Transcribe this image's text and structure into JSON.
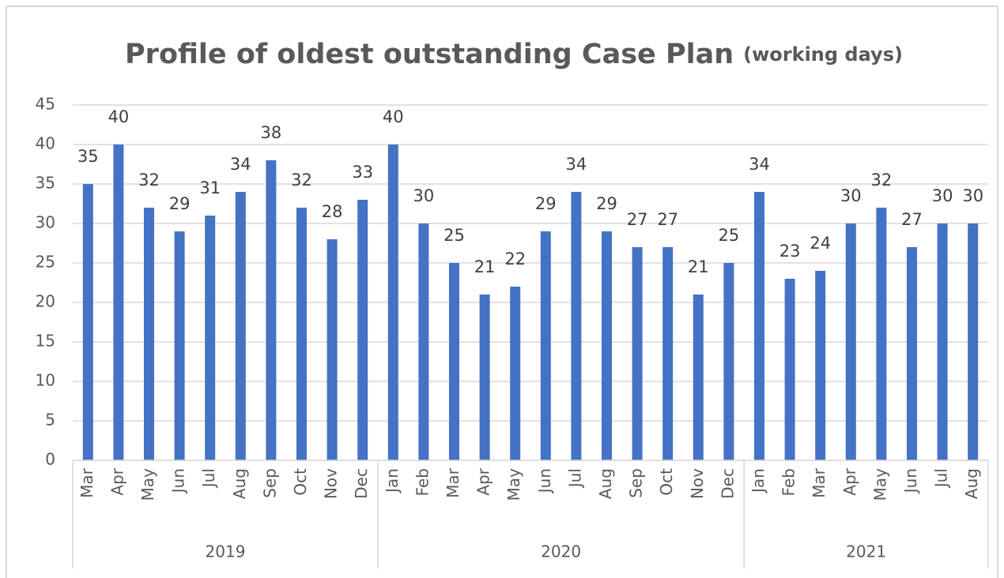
{
  "chart_data": {
    "type": "bar",
    "title": "Profile of oldest outstanding Case Plan",
    "subtitle": "(working days)",
    "color": "#4472c4",
    "grid": true,
    "ylim": [
      0,
      45
    ],
    "yticks": [
      0,
      5,
      10,
      15,
      20,
      25,
      30,
      35,
      40,
      45
    ],
    "groups": [
      {
        "name": "2019",
        "categories": [
          "Mar",
          "Apr",
          "May",
          "Jun",
          "Jul",
          "Aug",
          "Sep",
          "Oct",
          "Nov",
          "Dec"
        ],
        "values": [
          35,
          40,
          32,
          29,
          31,
          34,
          38,
          32,
          28,
          33
        ]
      },
      {
        "name": "2020",
        "categories": [
          "Jan",
          "Feb",
          "Mar",
          "Apr",
          "May",
          "Jun",
          "Jul",
          "Aug",
          "Sep",
          "Oct",
          "Nov",
          "Dec"
        ],
        "values": [
          40,
          30,
          25,
          21,
          22,
          29,
          34,
          29,
          27,
          27,
          21,
          25
        ]
      },
      {
        "name": "2021",
        "categories": [
          "Jan",
          "Feb",
          "Mar",
          "Apr",
          "May",
          "Jun",
          "Jul",
          "Aug"
        ],
        "values": [
          34,
          23,
          24,
          30,
          32,
          27,
          30,
          30
        ]
      }
    ]
  }
}
